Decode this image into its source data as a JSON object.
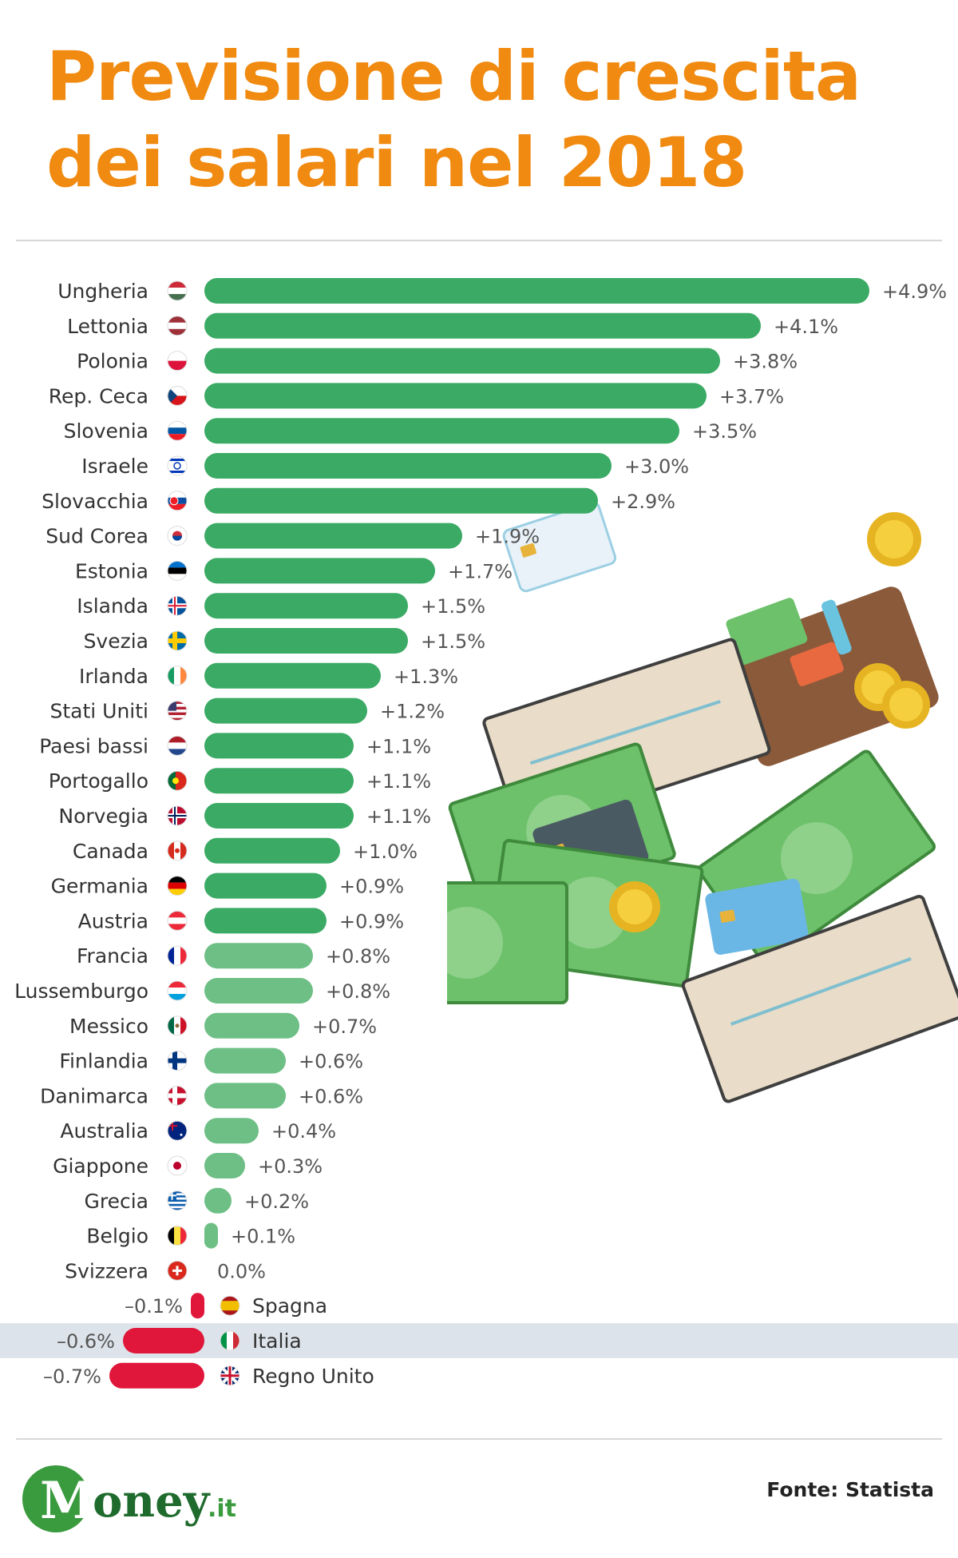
{
  "title_line1": "Previsione di crescita",
  "title_line2": "dei salari nel 2018",
  "source": "Fonte: Statista",
  "logo": {
    "letter": "M",
    "word": "oney",
    "suffix": ".it"
  },
  "colors": {
    "title": "#f08a10",
    "bar_positive": "#3aaa64",
    "bar_positive_light": "#6dbf85",
    "bar_negative": "#e0173a",
    "highlight_row": "#dde3ea"
  },
  "highlight": "Italia",
  "chart_data": {
    "type": "bar",
    "orientation": "horizontal",
    "categories": [
      "Ungheria",
      "Lettonia",
      "Polonia",
      "Rep. Ceca",
      "Slovenia",
      "Israele",
      "Slovacchia",
      "Sud Corea",
      "Estonia",
      "Islanda",
      "Svezia",
      "Irlanda",
      "Stati Uniti",
      "Paesi bassi",
      "Portogallo",
      "Norvegia",
      "Canada",
      "Germania",
      "Austria",
      "Francia",
      "Lussemburgo",
      "Messico",
      "Finlandia",
      "Danimarca",
      "Australia",
      "Giappone",
      "Grecia",
      "Belgio",
      "Svizzera",
      "Spagna",
      "Italia",
      "Regno Unito"
    ],
    "values": [
      4.9,
      4.1,
      3.8,
      3.7,
      3.5,
      3.0,
      2.9,
      1.9,
      1.7,
      1.5,
      1.5,
      1.3,
      1.2,
      1.1,
      1.1,
      1.1,
      1.0,
      0.9,
      0.9,
      0.8,
      0.8,
      0.7,
      0.6,
      0.6,
      0.4,
      0.3,
      0.2,
      0.1,
      0.0,
      -0.1,
      -0.6,
      -0.7
    ],
    "value_labels": [
      "+4.9%",
      "+4.1%",
      "+3.8%",
      "+3.7%",
      "+3.5%",
      "+3.0%",
      "+2.9%",
      "+1.9%",
      "+1.7%",
      "+1.5%",
      "+1.5%",
      "+1.3%",
      "+1.2%",
      "+1.1%",
      "+1.1%",
      "+1.1%",
      "+1.0%",
      "+0.9%",
      "+0.9%",
      "+0.8%",
      "+0.8%",
      "+0.7%",
      "+0.6%",
      "+0.6%",
      "+0.4%",
      "+0.3%",
      "+0.2%",
      "+0.1%",
      "0.0%",
      "–0.1%",
      "–0.6%",
      "–0.7%"
    ],
    "flags": [
      "hu",
      "lv",
      "pl",
      "cz",
      "si",
      "il",
      "sk",
      "kr",
      "ee",
      "is",
      "se",
      "ie",
      "us",
      "nl",
      "pt",
      "no",
      "ca",
      "de",
      "at",
      "fr",
      "lu",
      "mx",
      "fi",
      "dk",
      "au",
      "jp",
      "gr",
      "be",
      "ch",
      "es",
      "it",
      "gb"
    ],
    "xlim": [
      -0.7,
      4.9
    ]
  }
}
